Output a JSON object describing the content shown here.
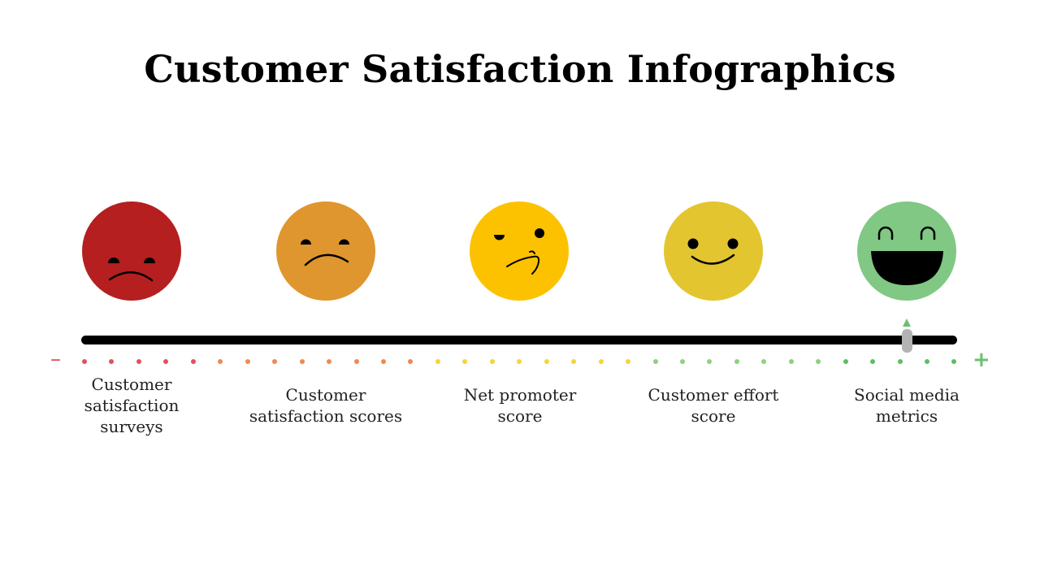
{
  "title": "Customer Satisfaction Infographics",
  "scale": {
    "minus_symbol": "–",
    "plus_symbol": "+",
    "selected_level": 5,
    "level_count": 5
  },
  "stages": [
    {
      "face": "very-sad-face-icon",
      "color": "#b51f1f",
      "label_lines": [
        "Customer",
        "satisfaction",
        "surveys"
      ]
    },
    {
      "face": "sad-face-icon",
      "color": "#df962e",
      "label_lines": [
        "Customer",
        "satisfaction scores"
      ]
    },
    {
      "face": "skeptical-face-icon",
      "color": "#fcc200",
      "label_lines": [
        "Net promoter",
        "score"
      ]
    },
    {
      "face": "smile-face-icon",
      "color": "#e3c530",
      "label_lines": [
        "Customer effort",
        "score"
      ]
    },
    {
      "face": "laughing-face-icon",
      "color": "#80c884",
      "label_lines": [
        "Social media",
        "metrics"
      ]
    }
  ],
  "dot_colors": {
    "red": "#e0525a",
    "orange": "#f08a4b",
    "yellow": "#f5d53a",
    "light_green": "#8fd07a",
    "green": "#5cbf5f"
  }
}
